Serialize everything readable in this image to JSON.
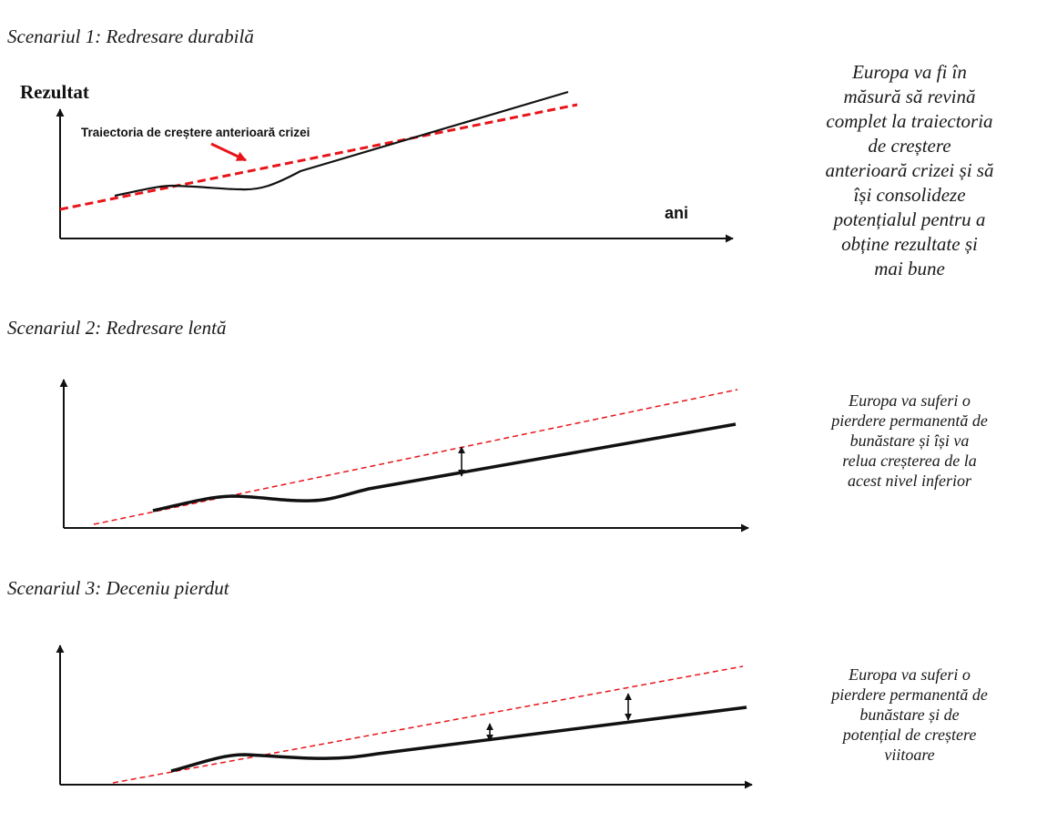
{
  "colors": {
    "trend_line": "#e8141a",
    "actual_line": "#111111",
    "axis": "#111111",
    "text": "#1a1a1a"
  },
  "scenarios": [
    {
      "title": "Scenariul 1: Redresare durabilă",
      "y_axis_label": "Rezultat",
      "x_axis_label": "ani",
      "annotation": "Traiectoria de creștere anterioară crizei",
      "description": "Europa va fi în\nmăsură să revină\ncomplet la traiectoria\nde creștere\nanterioară crizei și să\nîși consolideze\npotențialul pentru a\nobține rezultate și\nmai bune"
    },
    {
      "title": "Scenariul 2: Redresare lentă",
      "description": "Europa va suferi o\npierdere permanentă de\nbunăstare și își va\nrelua creșterea de la\nacest nivel inferior"
    },
    {
      "title": "Scenariul 3: Deceniu pierdut",
      "description": "Europa va suferi o\npierdere permanentă de\nbunăstare și de\npotențial de creștere\nviitoare"
    }
  ]
}
